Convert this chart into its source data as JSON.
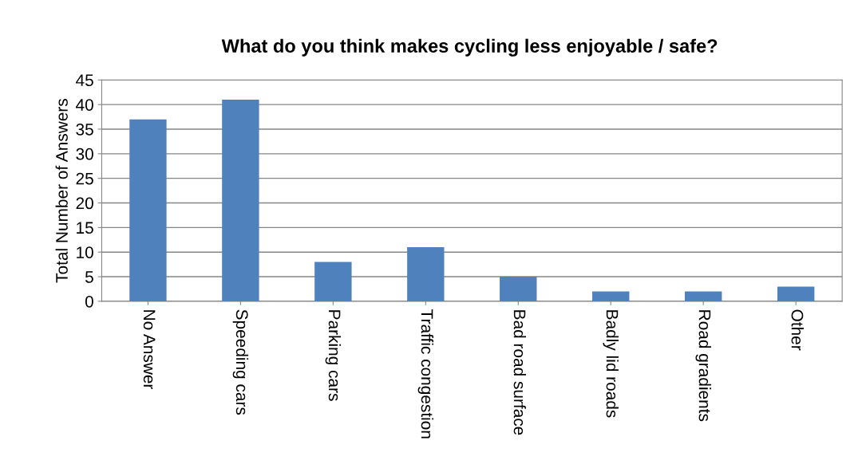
{
  "chart_data": {
    "type": "bar",
    "title": "What do you think makes cycling less enjoyable / safe?",
    "ylabel": "Total Number of Answers",
    "categories": [
      "No Answer",
      "Speeding cars",
      "Parking cars",
      "Traffic congestion",
      "Bad road surface",
      "Badly lid roads",
      "Road gradients",
      "Other"
    ],
    "values": [
      37,
      41,
      8,
      11,
      5,
      2,
      2,
      3
    ],
    "color": "#4f81bd",
    "ylim": [
      0,
      45
    ],
    "yticks": [
      0,
      5,
      10,
      15,
      20,
      25,
      30,
      35,
      40,
      45
    ],
    "grid": "y",
    "legend": false
  }
}
